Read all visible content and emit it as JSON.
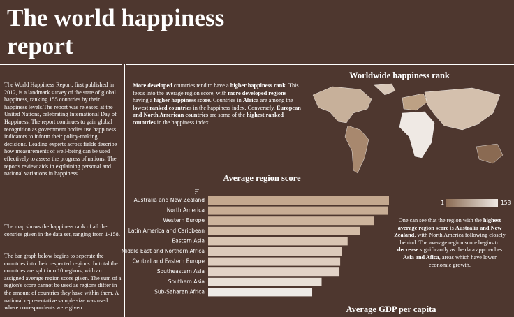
{
  "header": {
    "title": "The world happiness report"
  },
  "left_text": {
    "paragraphs": [
      "The World Happiness Report, first published in 2012, is a landmark survey of the state of global happiness, ranking 155 countries by their happiness levels.The report was released at the United Nations, celebrating International Day of Happiness. The report continues to gain global recognition as government bodies use happiness indicators to inform their policy-making decisions. Leading experts across fields describe how measurements of well-being can be used effectively to assess the progress of nations. The reports review aids in explaining personal and national variations in happiness.",
      "The map shows the happiness rank of all the contries given in the data set, ranging from 1-158.",
      "The bar graph below begins to seperate the countries into their respected regions. In total the countries are split into 10 regions, with an assigned average region score given. The sum of a region's score cannot be used as regions differ in the amount of countries they have within them. A national representative sample size was used where correspondents were given"
    ]
  },
  "center_text": {
    "runs": [
      {
        "text": "More developed",
        "bold": true
      },
      {
        "text": " countries tend to have a ",
        "bold": false
      },
      {
        "text": "higher happiness rank",
        "bold": true
      },
      {
        "text": ". This feeds into the average region score, with ",
        "bold": false
      },
      {
        "text": "more developed regions",
        "bold": true
      },
      {
        "text": " having a ",
        "bold": false
      },
      {
        "text": "higher happiness score",
        "bold": true
      },
      {
        "text": ". Countries in ",
        "bold": false
      },
      {
        "text": "Africa",
        "bold": true
      },
      {
        "text": " are among the ",
        "bold": false
      },
      {
        "text": "lowest ranked countries",
        "bold": true
      },
      {
        "text": " in the happiness index. Conversely, ",
        "bold": false
      },
      {
        "text": "European and North American countries",
        "bold": true
      },
      {
        "text": " are some of the ",
        "bold": false
      },
      {
        "text": "highest ranked countries",
        "bold": true
      },
      {
        "text": " in the happiness index.",
        "bold": false
      }
    ]
  },
  "right_text": {
    "runs": [
      {
        "text": "One can see that the region with the ",
        "bold": false
      },
      {
        "text": "highest average region score",
        "bold": true
      },
      {
        "text": " is ",
        "bold": false
      },
      {
        "text": "Australia and New Zealand",
        "bold": true
      },
      {
        "text": ", with North America following closely behind. The average region score begins to ",
        "bold": false
      },
      {
        "text": "decrease",
        "bold": true
      },
      {
        "text": " significantly as the data approaches ",
        "bold": false
      },
      {
        "text": "Asia and Afica",
        "bold": true
      },
      {
        "text": ", areas which have lower economic growth.",
        "bold": false
      }
    ]
  },
  "map": {
    "title": "Worldwide happiness rank",
    "legend": {
      "min": 1,
      "max": 158
    }
  },
  "gdp": {
    "title": "Average GDP per capita"
  },
  "chart_data": {
    "type": "bar",
    "orientation": "horizontal",
    "title": "Average region score",
    "categories": [
      "Australia and New Zealand",
      "North America",
      "Western Europe",
      "Latin America and Caribbean",
      "Eastern Asia",
      "Middle East and Northern Africa",
      "Central and Eastern Europe",
      "Southeastern Asia",
      "Southern Asia",
      "Sub-Saharan Africa"
    ],
    "values": [
      7.3,
      7.27,
      6.69,
      6.14,
      5.63,
      5.4,
      5.33,
      5.3,
      4.58,
      4.2
    ],
    "colors": [
      "#c4a88f",
      "#c8ad95",
      "#cdb49d",
      "#d3bca7",
      "#d9c5b3",
      "#dccabb",
      "#dfcec0",
      "#e2d3c7",
      "#e9e0d7",
      "#eeeae6"
    ],
    "xlim": [
      0,
      7.3
    ]
  }
}
